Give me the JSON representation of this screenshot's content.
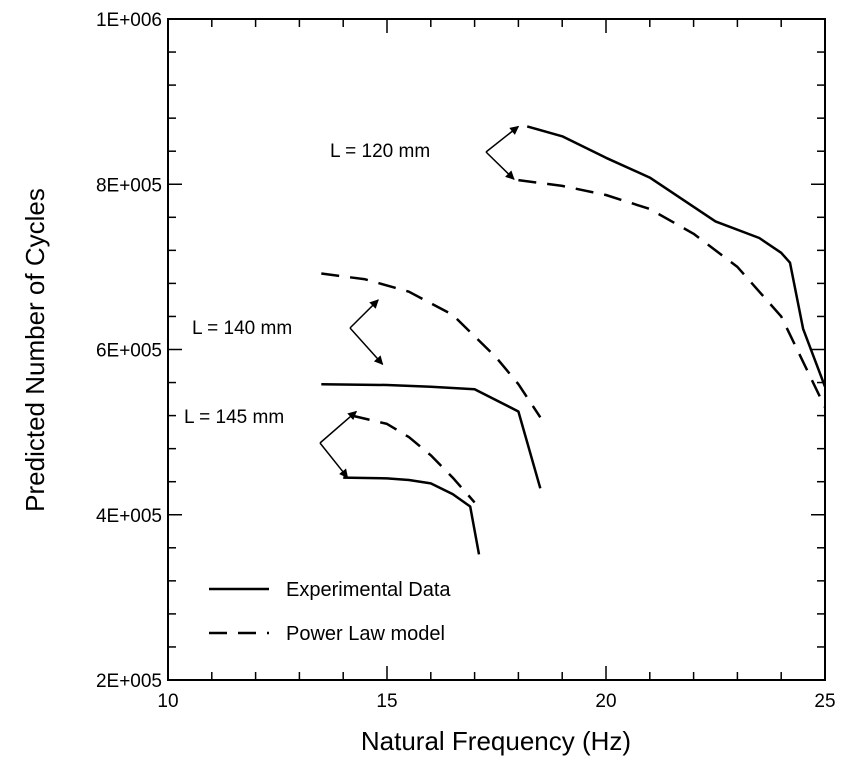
{
  "chart_data": {
    "type": "line",
    "xlabel": "Natural Frequency (Hz)",
    "ylabel": "Predicted Number of Cycles",
    "xlim": [
      10,
      25
    ],
    "ylim": [
      200000,
      1000000
    ],
    "x_ticks": [
      10,
      15,
      20,
      25
    ],
    "x_tick_labels": [
      "10",
      "15",
      "20",
      "25"
    ],
    "y_ticks": [
      200000,
      400000,
      600000,
      800000,
      1000000
    ],
    "y_tick_labels": [
      "2E+005",
      "4E+005",
      "6E+005",
      "8E+005",
      "1E+006"
    ],
    "grid": false,
    "legend_position": "bottom-left",
    "legend": [
      {
        "label": "Experimental Data",
        "style": "solid"
      },
      {
        "label": "Power Law model",
        "style": "dashed"
      }
    ],
    "series": [
      {
        "group": "L = 120 mm",
        "style": "solid",
        "color": "#000000",
        "x": [
          18.2,
          19.0,
          20.0,
          21.0,
          22.5,
          23.5,
          24.0,
          24.2,
          24.5,
          25.0
        ],
        "y": [
          870000,
          858000,
          832000,
          808000,
          755000,
          735000,
          717000,
          705000,
          625000,
          555000
        ]
      },
      {
        "group": "L = 120 mm",
        "style": "dashed",
        "color": "#000000",
        "x": [
          18.0,
          19.0,
          20.0,
          21.0,
          22.0,
          23.0,
          24.0,
          25.0
        ],
        "y": [
          805000,
          798000,
          787000,
          770000,
          740000,
          700000,
          640000,
          530000
        ]
      },
      {
        "group": "L = 140 mm",
        "style": "solid",
        "color": "#000000",
        "x": [
          13.5,
          15.0,
          16.0,
          17.0,
          18.0,
          18.5
        ],
        "y": [
          558000,
          557000,
          555000,
          552000,
          525000,
          432000
        ]
      },
      {
        "group": "L = 140 mm",
        "style": "dashed",
        "color": "#000000",
        "x": [
          13.5,
          14.5,
          15.5,
          16.5,
          17.5,
          18.0,
          18.5
        ],
        "y": [
          692000,
          685000,
          670000,
          642000,
          590000,
          558000,
          518000
        ]
      },
      {
        "group": "L = 145 mm",
        "style": "solid",
        "color": "#000000",
        "x": [
          14.0,
          15.0,
          15.5,
          16.0,
          16.5,
          16.9,
          17.1
        ],
        "y": [
          445000,
          444000,
          442000,
          438000,
          425000,
          410000,
          352000
        ]
      },
      {
        "group": "L = 145 mm",
        "style": "dashed",
        "color": "#000000",
        "x": [
          14.2,
          15.0,
          15.5,
          16.0,
          16.5,
          17.0
        ],
        "y": [
          520000,
          510000,
          494000,
          472000,
          445000,
          415000
        ]
      }
    ],
    "annotations": [
      {
        "text": "L = 120 mm",
        "arrows_to": [
          [
            18.0,
            870000
          ],
          [
            17.9,
            806000
          ]
        ]
      },
      {
        "text": "L = 140 mm",
        "arrows_to": [
          [
            14.8,
            660000
          ],
          [
            14.9,
            582000
          ]
        ]
      },
      {
        "text": "L = 145 mm",
        "arrows_to": [
          [
            14.3,
            525000
          ],
          [
            14.1,
            445000
          ]
        ]
      }
    ]
  }
}
